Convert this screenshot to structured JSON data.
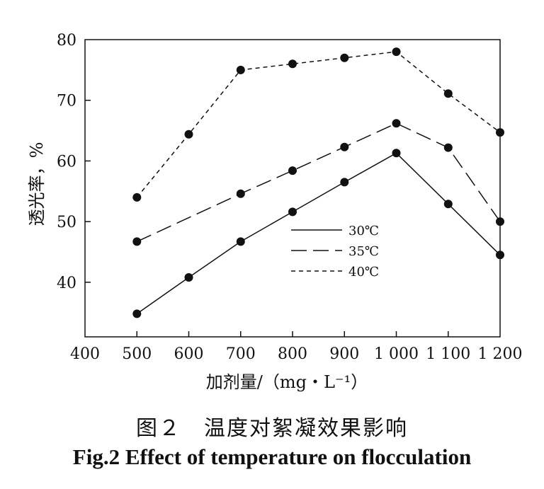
{
  "chart_data": {
    "type": "line",
    "xlabel": "加剂量/（mg・L⁻¹）",
    "ylabel": "透光率，%",
    "xlim": [
      400,
      1200
    ],
    "ylim": [
      31,
      80
    ],
    "x_ticks": [
      {
        "value": 400,
        "label": "400"
      },
      {
        "value": 500,
        "label": "500"
      },
      {
        "value": 600,
        "label": "600"
      },
      {
        "value": 700,
        "label": "700"
      },
      {
        "value": 800,
        "label": "800"
      },
      {
        "value": 900,
        "label": "900"
      },
      {
        "value": 1000,
        "label": "1 000"
      },
      {
        "value": 1100,
        "label": "1 100"
      },
      {
        "value": 1200,
        "label": "1 200"
      }
    ],
    "y_ticks": [
      {
        "value": 40,
        "label": "40"
      },
      {
        "value": 50,
        "label": "50"
      },
      {
        "value": 60,
        "label": "60"
      },
      {
        "value": 70,
        "label": "70"
      },
      {
        "value": 80,
        "label": "80"
      }
    ],
    "x": [
      500,
      600,
      700,
      800,
      900,
      1000,
      1100,
      1200
    ],
    "series": [
      {
        "name": "30℃",
        "dash": "solid",
        "values": [
          34.8,
          40.8,
          46.7,
          51.6,
          56.5,
          61.3,
          52.9,
          44.5
        ]
      },
      {
        "name": "35℃",
        "dash": "long",
        "values": [
          46.7,
          null,
          54.6,
          58.4,
          62.3,
          66.2,
          62.2,
          50.0
        ]
      },
      {
        "name": "40℃",
        "dash": "short",
        "values": [
          54.0,
          64.4,
          75.0,
          76.0,
          77.0,
          78.0,
          71.1,
          64.7
        ]
      }
    ],
    "legend": "center-right",
    "grid": false
  },
  "caption": {
    "chinese": "图２　温度对絮凝效果影响",
    "english": "Fig.2 Effect of temperature on flocculation"
  }
}
